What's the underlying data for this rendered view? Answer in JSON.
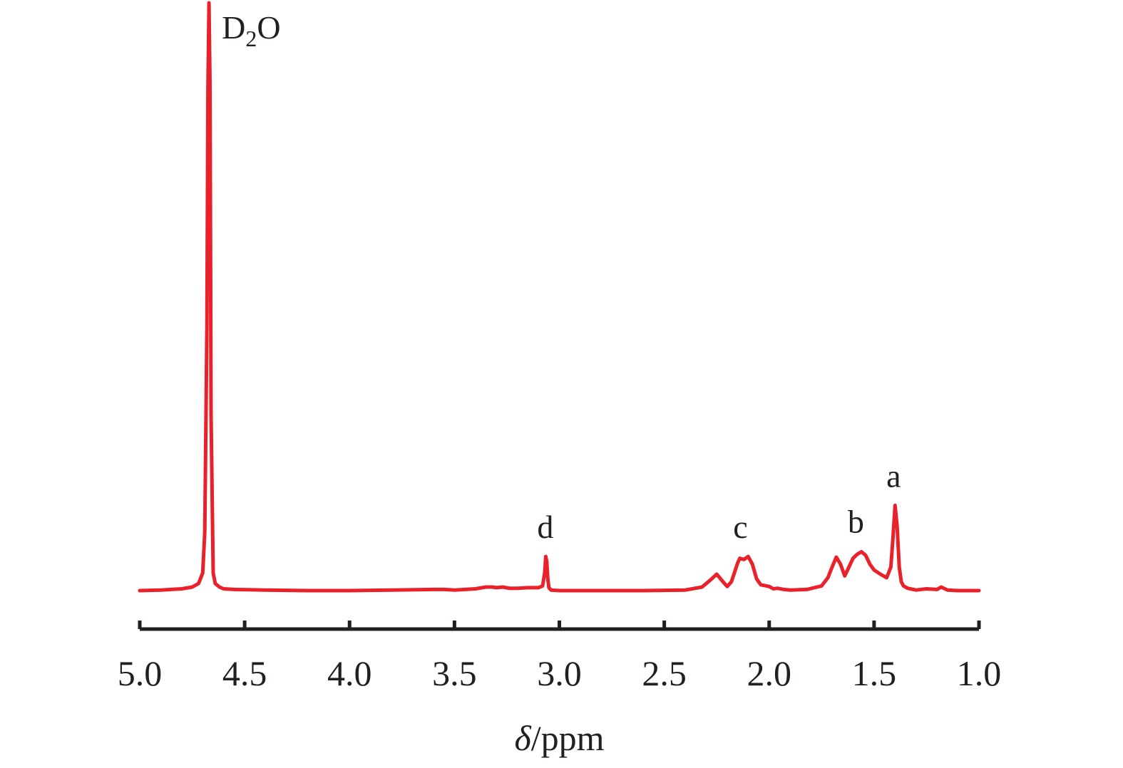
{
  "chart_data": {
    "type": "line",
    "xlabel_symbol": "δ",
    "xlabel_unit": "/ppm",
    "xlim": [
      5.0,
      1.0
    ],
    "x_reversed": true,
    "xticks": [
      "5.0",
      "4.5",
      "4.0",
      "3.5",
      "3.0",
      "2.5",
      "2.0",
      "1.5",
      "1.0"
    ],
    "yaxis_visible": false,
    "grid": false,
    "line_color": "#e8212b",
    "axis_color": "#231f20",
    "annotations": [
      {
        "text": "D",
        "subscript": "2",
        "suffix": "O",
        "x": 4.67,
        "y": 1.0
      },
      {
        "text": "d",
        "x": 3.06,
        "y": 0.058
      },
      {
        "text": "c",
        "x": 2.13,
        "y": 0.058
      },
      {
        "text": "b",
        "x": 1.58,
        "y": 0.067
      },
      {
        "text": "a",
        "x": 1.4,
        "y": 0.145
      }
    ],
    "series": [
      {
        "x": [
          5.0,
          4.9,
          4.8,
          4.75,
          4.72,
          4.7,
          4.69,
          4.68,
          4.675,
          4.67,
          4.665,
          4.66,
          4.65,
          4.64,
          4.62,
          4.6,
          4.55,
          4.4,
          4.2,
          4.0,
          3.8,
          3.6,
          3.55,
          3.5,
          3.4,
          3.35,
          3.32,
          3.3,
          3.27,
          3.24,
          3.2,
          3.15,
          3.1,
          3.08,
          3.07,
          3.065,
          3.06,
          3.055,
          3.05,
          3.04,
          3.0,
          2.8,
          2.6,
          2.4,
          2.32,
          2.28,
          2.25,
          2.22,
          2.2,
          2.18,
          2.15,
          2.14,
          2.12,
          2.1,
          2.08,
          2.06,
          2.04,
          2.0,
          1.98,
          1.96,
          1.93,
          1.9,
          1.82,
          1.75,
          1.72,
          1.7,
          1.68,
          1.66,
          1.64,
          1.62,
          1.6,
          1.58,
          1.56,
          1.54,
          1.52,
          1.5,
          1.47,
          1.44,
          1.42,
          1.41,
          1.4,
          1.39,
          1.38,
          1.37,
          1.36,
          1.34,
          1.3,
          1.25,
          1.2,
          1.18,
          1.15,
          1.1,
          1.05,
          1.0
        ],
        "y": [
          0.0,
          0.001,
          0.003,
          0.006,
          0.012,
          0.03,
          0.1,
          0.45,
          0.85,
          1.0,
          0.85,
          0.3,
          0.03,
          0.012,
          0.006,
          0.003,
          0.002,
          0.001,
          0.0,
          0.0,
          0.001,
          0.002,
          0.002,
          0.001,
          0.003,
          0.006,
          0.006,
          0.005,
          0.006,
          0.004,
          0.004,
          0.005,
          0.005,
          0.008,
          0.03,
          0.058,
          0.05,
          0.02,
          0.005,
          0.001,
          0.0,
          0.0,
          0.0,
          0.001,
          0.006,
          0.018,
          0.028,
          0.015,
          0.007,
          0.015,
          0.047,
          0.055,
          0.053,
          0.058,
          0.045,
          0.02,
          0.01,
          0.007,
          0.003,
          0.004,
          0.002,
          0.001,
          0.002,
          0.008,
          0.022,
          0.04,
          0.057,
          0.045,
          0.025,
          0.04,
          0.055,
          0.062,
          0.066,
          0.06,
          0.045,
          0.035,
          0.028,
          0.022,
          0.04,
          0.09,
          0.145,
          0.11,
          0.04,
          0.015,
          0.008,
          0.004,
          0.001,
          0.003,
          0.002,
          0.006,
          0.001,
          0.0,
          0.0,
          0.0
        ]
      }
    ]
  }
}
